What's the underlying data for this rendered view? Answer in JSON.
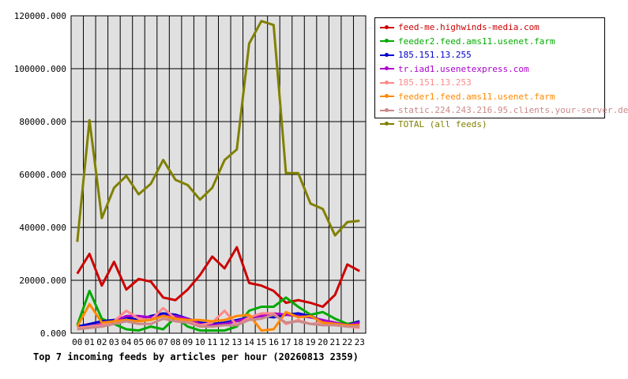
{
  "chart_data": {
    "type": "line",
    "title": "Top 7 incoming feeds by articles per hour (20260813 2359)",
    "xlabel": "",
    "ylabel": "",
    "ylim": [
      0,
      120000
    ],
    "yticks": [
      "0.000",
      "20000.000",
      "40000.000",
      "60000.000",
      "80000.000",
      "100000.000",
      "120000.000"
    ],
    "grid": true,
    "legend_position": "right",
    "background": "#e0e0e0",
    "categories": [
      "00",
      "01",
      "02",
      "03",
      "04",
      "05",
      "06",
      "07",
      "08",
      "09",
      "10",
      "11",
      "12",
      "13",
      "14",
      "15",
      "16",
      "17",
      "18",
      "19",
      "20",
      "21",
      "22",
      "23"
    ],
    "series": [
      {
        "name": "feed-me.highwinds-media.com",
        "color": "#cc0000",
        "values": [
          22500,
          30000,
          18000,
          27000,
          16500,
          20500,
          19500,
          13500,
          12500,
          16500,
          22000,
          29000,
          24500,
          32500,
          19000,
          18000,
          16000,
          11500,
          12500,
          11500,
          10000,
          14500,
          26000,
          23500
        ]
      },
      {
        "name": "feeder2.feed.ams11.usenet.farm",
        "color": "#00aa00",
        "values": [
          3000,
          16000,
          5500,
          3500,
          1500,
          1000,
          2500,
          1500,
          6000,
          2500,
          1000,
          1000,
          1000,
          2500,
          8500,
          10000,
          10000,
          13500,
          10000,
          7000,
          8000,
          5500,
          3500,
          4500
        ]
      },
      {
        "name": "185.151.13.255",
        "color": "#0000cc",
        "values": [
          2500,
          3500,
          4500,
          5000,
          6000,
          5000,
          6500,
          7500,
          7000,
          5500,
          4000,
          3500,
          4000,
          5000,
          6000,
          6500,
          6000,
          7000,
          7500,
          6500,
          4500,
          3500,
          3000,
          4500
        ]
      },
      {
        "name": "tr.iad1.usenetexpress.com",
        "color": "#aa00cc",
        "values": [
          2000,
          2500,
          3500,
          4500,
          6500,
          6500,
          6000,
          6500,
          6500,
          5500,
          3500,
          3000,
          3500,
          4500,
          6000,
          6500,
          7500,
          7000,
          6500,
          6000,
          5000,
          4000,
          3000,
          4000
        ]
      },
      {
        "name": "185.151.13.253",
        "color": "#ff8888",
        "values": [
          2000,
          2500,
          3000,
          4500,
          8500,
          5500,
          5000,
          9500,
          5500,
          4500,
          3000,
          4000,
          8500,
          3000,
          6000,
          7500,
          7500,
          3500,
          5000,
          3500,
          4000,
          3500,
          2500,
          2000
        ]
      },
      {
        "name": "feeder1.feed.ams11.usenet.farm",
        "color": "#ff8800",
        "values": [
          2500,
          11000,
          4000,
          4500,
          5000,
          4500,
          5000,
          6500,
          5500,
          5000,
          5000,
          4500,
          5000,
          6500,
          7000,
          1000,
          1500,
          8000,
          6000,
          6500,
          4000,
          3500,
          3000,
          3000
        ]
      },
      {
        "name": "static.224.243.216.95.clients.your-server.de",
        "color": "#cc8888",
        "values": [
          1500,
          2000,
          2500,
          3500,
          4500,
          3500,
          3500,
          5500,
          4500,
          4000,
          2500,
          2500,
          3000,
          3000,
          5000,
          5500,
          7000,
          4000,
          4500,
          3500,
          3000,
          3000,
          2500,
          2500
        ]
      },
      {
        "name": "TOTAL (all feeds)",
        "color": "#808000",
        "values": [
          34500,
          80500,
          43500,
          55000,
          59500,
          52500,
          56500,
          65500,
          58000,
          56000,
          50500,
          55000,
          65500,
          69500,
          109500,
          118000,
          116500,
          60500,
          60500,
          49000,
          47000,
          37000,
          42000,
          42500
        ]
      }
    ]
  }
}
